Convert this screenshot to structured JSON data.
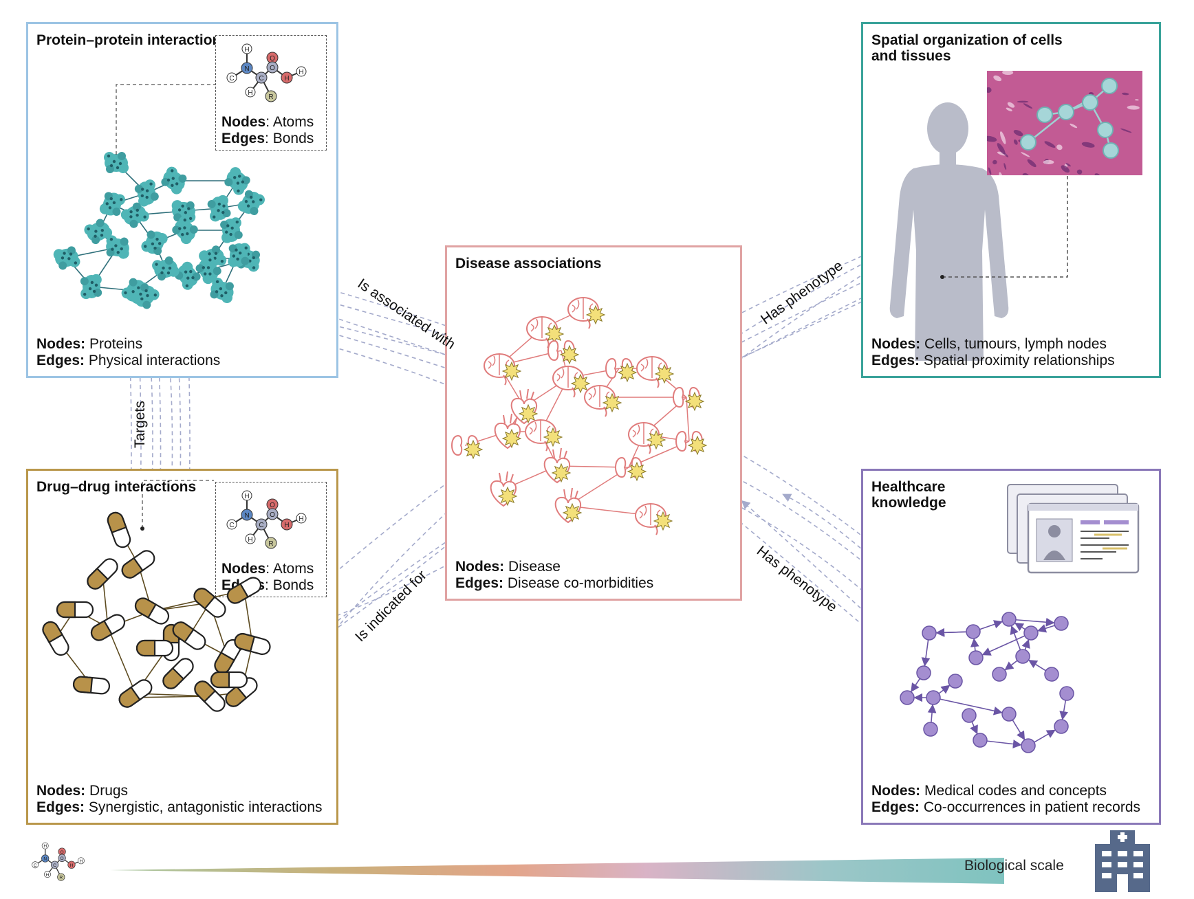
{
  "panels": {
    "ppi": {
      "title": "Protein–protein interactions",
      "nodes_label": "Nodes:",
      "nodes_value": "Proteins",
      "edges_label": "Edges:",
      "edges_value": "Physical interactions",
      "inset": {
        "nodes_label": "Nodes",
        "nodes_value": ": Atoms",
        "edges_label": "Edges",
        "edges_value": ": Bonds"
      }
    },
    "spatial": {
      "title": "Spatial organization of cells and tissues",
      "nodes_label": "Nodes:",
      "nodes_value": "Cells, tumours, lymph nodes",
      "edges_label": "Edges:",
      "edges_value": "Spatial proximity relationships"
    },
    "disease": {
      "title": "Disease associations",
      "nodes_label": "Nodes:",
      "nodes_value": "Disease",
      "edges_label": "Edges:",
      "edges_value": "Disease co-morbidities"
    },
    "ddi": {
      "title": "Drug–drug interactions",
      "nodes_label": "Nodes:",
      "nodes_value": "Drugs",
      "edges_label": "Edges:",
      "edges_value": "Synergistic, antagonistic interactions",
      "inset": {
        "nodes_label": "Nodes",
        "nodes_value": ": Atoms",
        "edges_label": "Edges",
        "edges_value": ": Bonds"
      }
    },
    "healthcare": {
      "title": "Healthcare knowledge",
      "nodes_label": "Nodes:",
      "nodes_value": "Medical codes and concepts",
      "edges_label": "Edges:",
      "edges_value": "Co-occurrences in patient records"
    }
  },
  "edge_labels": {
    "associated": "Is associated with",
    "phenotype_top": "Has phenotype",
    "targets": "Targets",
    "indicated": "Is indicated for",
    "phenotype_bottom": "Has phenotype"
  },
  "atom_labels": [
    "H",
    "N",
    "C",
    "C",
    "O",
    "O",
    "H",
    "H",
    "H",
    "R"
  ],
  "scale": {
    "label": "Biological scale"
  },
  "colors": {
    "ppi_border": "#9cc4e4",
    "spatial_border": "#3aa39a",
    "disease_border": "#e0a3a3",
    "ddi_border": "#b9974b",
    "healthcare_border": "#8a78b8",
    "protein": "#4fb5b6",
    "pill": "#b8924a",
    "graph_node": "#a48ed0",
    "organ": "#e07c7c",
    "burst": "#f3e07a",
    "silhouette": "#b9bcc9",
    "dashed_arrow": "#a4aacb"
  },
  "icons": [
    "molecule-icon",
    "protein-icon",
    "pill-icon",
    "brain-icon",
    "heart-icon",
    "kidney-icon",
    "human-silhouette-icon",
    "tissue-image-icon",
    "patient-record-icon",
    "hospital-icon"
  ]
}
